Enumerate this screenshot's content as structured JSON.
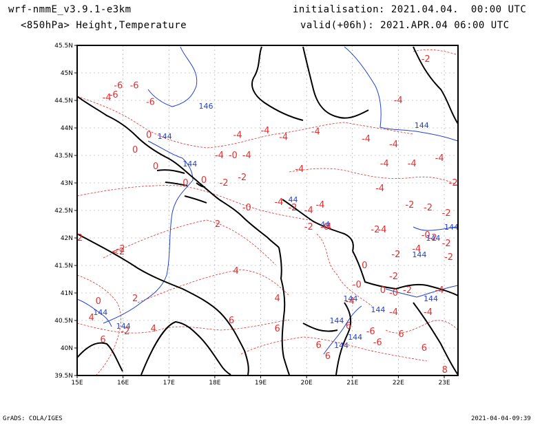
{
  "header": {
    "model": "wrf-nmmE_v3.9.1-e3km",
    "level": "<850hPa> Height,Temperature",
    "init": "initialisation: 2021.04.04.  00:00 UTC",
    "valid": "valid(+06h): 2021.APR.04 06:00 UTC"
  },
  "footer": {
    "left": "GrADS: COLA/IGES",
    "right": "2021-04-04-09:39"
  },
  "axes": {
    "lon_ticks": [
      "15E",
      "16E",
      "17E",
      "18E",
      "19E",
      "20E",
      "21E",
      "22E",
      "23E"
    ],
    "lat_ticks": [
      "45.5N",
      "45N",
      "44.5N",
      "44N",
      "43.5N",
      "43N",
      "42.5N",
      "42N",
      "41.5N",
      "41N",
      "40.5N",
      "40N",
      "39.5N"
    ],
    "lon_range": [
      15,
      23.3
    ],
    "lat_range": [
      39.5,
      45.5
    ],
    "grid": true
  },
  "colors": {
    "temperature": "#e03030",
    "height": "#2040d0",
    "coast": "#000000",
    "grid": "#9a9a9a"
  },
  "temperature_labels": [
    {
      "lon": 15.7,
      "lat": 44.55,
      "text": "-6"
    },
    {
      "lon": 15.55,
      "lat": 44.5,
      "text": "-4"
    },
    {
      "lon": 15.8,
      "lat": 44.72,
      "text": "-6"
    },
    {
      "lon": 16.15,
      "lat": 44.72,
      "text": "-6"
    },
    {
      "lon": 16.5,
      "lat": 44.42,
      "text": "-6"
    },
    {
      "lon": 16.5,
      "lat": 43.82,
      "text": "0"
    },
    {
      "lon": 16.2,
      "lat": 43.55,
      "text": "0"
    },
    {
      "lon": 16.65,
      "lat": 43.25,
      "text": "0"
    },
    {
      "lon": 17.3,
      "lat": 42.95,
      "text": "0"
    },
    {
      "lon": 17.7,
      "lat": 43.0,
      "text": "0"
    },
    {
      "lon": 18.0,
      "lat": 43.45,
      "text": "-4"
    },
    {
      "lon": 18.3,
      "lat": 43.45,
      "text": "-0"
    },
    {
      "lon": 18.6,
      "lat": 43.45,
      "text": "-4"
    },
    {
      "lon": 18.4,
      "lat": 43.82,
      "text": "-4"
    },
    {
      "lon": 19.0,
      "lat": 43.9,
      "text": "-4"
    },
    {
      "lon": 19.4,
      "lat": 43.78,
      "text": "-4"
    },
    {
      "lon": 19.75,
      "lat": 43.2,
      "text": "-4"
    },
    {
      "lon": 20.1,
      "lat": 43.88,
      "text": "-4"
    },
    {
      "lon": 21.2,
      "lat": 43.75,
      "text": "-4"
    },
    {
      "lon": 21.8,
      "lat": 43.65,
      "text": "-4"
    },
    {
      "lon": 21.9,
      "lat": 44.45,
      "text": "-4"
    },
    {
      "lon": 22.5,
      "lat": 45.2,
      "text": "-2"
    },
    {
      "lon": 21.6,
      "lat": 43.3,
      "text": "-4"
    },
    {
      "lon": 22.2,
      "lat": 43.3,
      "text": "-4"
    },
    {
      "lon": 22.8,
      "lat": 43.4,
      "text": "-4"
    },
    {
      "lon": 21.5,
      "lat": 42.85,
      "text": "-4"
    },
    {
      "lon": 22.15,
      "lat": 42.55,
      "text": "-2"
    },
    {
      "lon": 22.55,
      "lat": 42.5,
      "text": "-2"
    },
    {
      "lon": 22.95,
      "lat": 42.4,
      "text": "-2"
    },
    {
      "lon": 23.1,
      "lat": 42.95,
      "text": "-2"
    },
    {
      "lon": 19.3,
      "lat": 42.6,
      "text": "-4"
    },
    {
      "lon": 19.6,
      "lat": 42.5,
      "text": "-2"
    },
    {
      "lon": 19.95,
      "lat": 42.45,
      "text": "-4"
    },
    {
      "lon": 20.2,
      "lat": 42.55,
      "text": "-4"
    },
    {
      "lon": 19.95,
      "lat": 42.15,
      "text": "-2"
    },
    {
      "lon": 20.3,
      "lat": 42.15,
      "text": "-0"
    },
    {
      "lon": 20.35,
      "lat": 42.15,
      "text": "-4"
    },
    {
      "lon": 18.6,
      "lat": 42.5,
      "text": "-0"
    },
    {
      "lon": 18.1,
      "lat": 42.95,
      "text": "-2"
    },
    {
      "lon": 18.5,
      "lat": 43.05,
      "text": "-2"
    },
    {
      "lon": 21.4,
      "lat": 42.1,
      "text": "-2"
    },
    {
      "lon": 21.55,
      "lat": 42.1,
      "text": "-4"
    },
    {
      "lon": 22.5,
      "lat": 42.0,
      "text": "-0"
    },
    {
      "lon": 22.65,
      "lat": 41.95,
      "text": "-2"
    },
    {
      "lon": 22.95,
      "lat": 41.85,
      "text": "-2"
    },
    {
      "lon": 23.0,
      "lat": 41.6,
      "text": "-2"
    },
    {
      "lon": 22.3,
      "lat": 41.75,
      "text": "-4"
    },
    {
      "lon": 21.85,
      "lat": 41.65,
      "text": "-2"
    },
    {
      "lon": 21.8,
      "lat": 41.25,
      "text": "-2"
    },
    {
      "lon": 21.2,
      "lat": 41.45,
      "text": "0"
    },
    {
      "lon": 21.0,
      "lat": 41.1,
      "text": "-0"
    },
    {
      "lon": 20.85,
      "lat": 40.8,
      "text": "-4"
    },
    {
      "lon": 21.6,
      "lat": 41.0,
      "text": "0"
    },
    {
      "lon": 21.8,
      "lat": 40.95,
      "text": "-0"
    },
    {
      "lon": 22.1,
      "lat": 41.0,
      "text": "-2"
    },
    {
      "lon": 22.8,
      "lat": 41.0,
      "text": "-4"
    },
    {
      "lon": 22.55,
      "lat": 40.6,
      "text": "-4"
    },
    {
      "lon": 21.8,
      "lat": 40.6,
      "text": "-4"
    },
    {
      "lon": 21.3,
      "lat": 40.25,
      "text": "-6"
    },
    {
      "lon": 21.45,
      "lat": 40.05,
      "text": "-6"
    },
    {
      "lon": 22.0,
      "lat": 40.2,
      "text": "6"
    },
    {
      "lon": 20.85,
      "lat": 40.35,
      "text": "6"
    },
    {
      "lon": 20.2,
      "lat": 40.0,
      "text": "6"
    },
    {
      "lon": 20.4,
      "lat": 39.8,
      "text": "6"
    },
    {
      "lon": 19.3,
      "lat": 40.3,
      "text": "6"
    },
    {
      "lon": 18.3,
      "lat": 40.45,
      "text": "6"
    },
    {
      "lon": 16.6,
      "lat": 40.3,
      "text": "4"
    },
    {
      "lon": 15.95,
      "lat": 40.25,
      "text": "-2"
    },
    {
      "lon": 15.5,
      "lat": 40.1,
      "text": "6"
    },
    {
      "lon": 15.25,
      "lat": 40.5,
      "text": "4"
    },
    {
      "lon": 15.4,
      "lat": 40.8,
      "text": "0"
    },
    {
      "lon": 16.2,
      "lat": 40.85,
      "text": "2"
    },
    {
      "lon": 15.0,
      "lat": 41.95,
      "text": "2"
    },
    {
      "lon": 15.75,
      "lat": 41.7,
      "text": "<2"
    },
    {
      "lon": 15.85,
      "lat": 41.75,
      "text": "-2"
    },
    {
      "lon": 18.0,
      "lat": 42.2,
      "text": "2"
    },
    {
      "lon": 18.4,
      "lat": 41.35,
      "text": "4"
    },
    {
      "lon": 19.3,
      "lat": 40.85,
      "text": "4"
    },
    {
      "lon": 22.95,
      "lat": 39.55,
      "text": "8"
    },
    {
      "lon": 22.5,
      "lat": 39.95,
      "text": "6"
    }
  ],
  "height_labels": [
    {
      "lon": 17.65,
      "lat": 44.35,
      "text": "146"
    },
    {
      "lon": 16.75,
      "lat": 43.8,
      "text": "144"
    },
    {
      "lon": 17.3,
      "lat": 43.3,
      "text": "144"
    },
    {
      "lon": 22.35,
      "lat": 44.0,
      "text": "144"
    },
    {
      "lon": 23.0,
      "lat": 42.15,
      "text": "144"
    },
    {
      "lon": 22.6,
      "lat": 41.95,
      "text": "144"
    },
    {
      "lon": 22.3,
      "lat": 41.65,
      "text": "144"
    },
    {
      "lon": 22.55,
      "lat": 40.85,
      "text": "144"
    },
    {
      "lon": 20.8,
      "lat": 40.85,
      "text": "144"
    },
    {
      "lon": 21.4,
      "lat": 40.65,
      "text": "144"
    },
    {
      "lon": 20.5,
      "lat": 40.45,
      "text": "144"
    },
    {
      "lon": 20.9,
      "lat": 40.15,
      "text": "144"
    },
    {
      "lon": 20.6,
      "lat": 40.0,
      "text": "144"
    },
    {
      "lon": 15.35,
      "lat": 40.6,
      "text": "144"
    },
    {
      "lon": 15.85,
      "lat": 40.35,
      "text": "144"
    },
    {
      "lon": 20.3,
      "lat": 42.2,
      "text": "44"
    },
    {
      "lon": 19.6,
      "lat": 42.65,
      "text": "44"
    }
  ]
}
